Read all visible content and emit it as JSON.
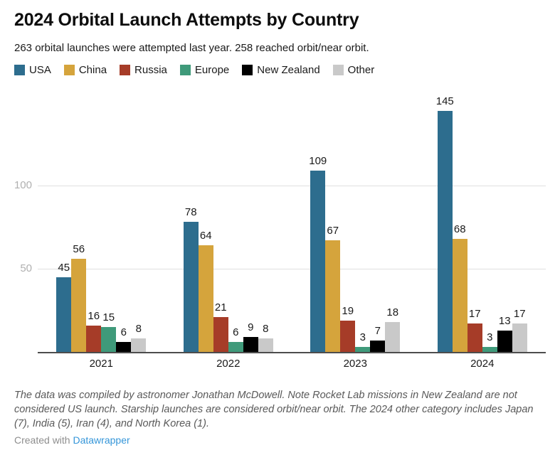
{
  "header": {
    "title": "2024 Orbital Launch Attempts by Country",
    "subtitle": "263 orbital launches were attempted last year. 258 reached orbit/near orbit."
  },
  "chart_data": {
    "type": "bar",
    "title": "2024 Orbital Launch Attempts by Country",
    "subtitle": "263 orbital launches were attempted last year. 258 reached orbit/near orbit.",
    "categories": [
      "2021",
      "2022",
      "2023",
      "2024"
    ],
    "series": [
      {
        "name": "USA",
        "color": "#2d6d8e",
        "values": [
          45,
          78,
          109,
          145
        ]
      },
      {
        "name": "China",
        "color": "#d5a43c",
        "values": [
          56,
          64,
          67,
          68
        ]
      },
      {
        "name": "Russia",
        "color": "#a63c28",
        "values": [
          16,
          21,
          19,
          17
        ]
      },
      {
        "name": "Europe",
        "color": "#3f9a7a",
        "values": [
          15,
          6,
          3,
          3
        ]
      },
      {
        "name": "New Zealand",
        "color": "#000000",
        "values": [
          6,
          9,
          7,
          13
        ]
      },
      {
        "name": "Other",
        "color": "#c9c9c9",
        "values": [
          8,
          8,
          18,
          17
        ]
      }
    ],
    "y_ticks": [
      50,
      100
    ],
    "ylim": [
      0,
      154
    ],
    "grid": "horizontal",
    "legend_position": "top",
    "value_labels": true,
    "xlabel": "",
    "ylabel": ""
  },
  "footer": {
    "note": "The data was compiled by astronomer Jonathan McDowell. Note Rocket Lab missions in New Zealand are not considered US launch. Starship launches are considered orbit/near orbit. The 2024 other category includes Japan (7), India (5), Iran (4), and North Korea (1).",
    "credit_prefix": "Created with ",
    "credit_link": "Datawrapper"
  },
  "colors": {
    "grid_line": "#e0e0e0",
    "baseline": "#4d4d4d",
    "tick_label": "#b0b0b0",
    "link": "#3596d9"
  }
}
